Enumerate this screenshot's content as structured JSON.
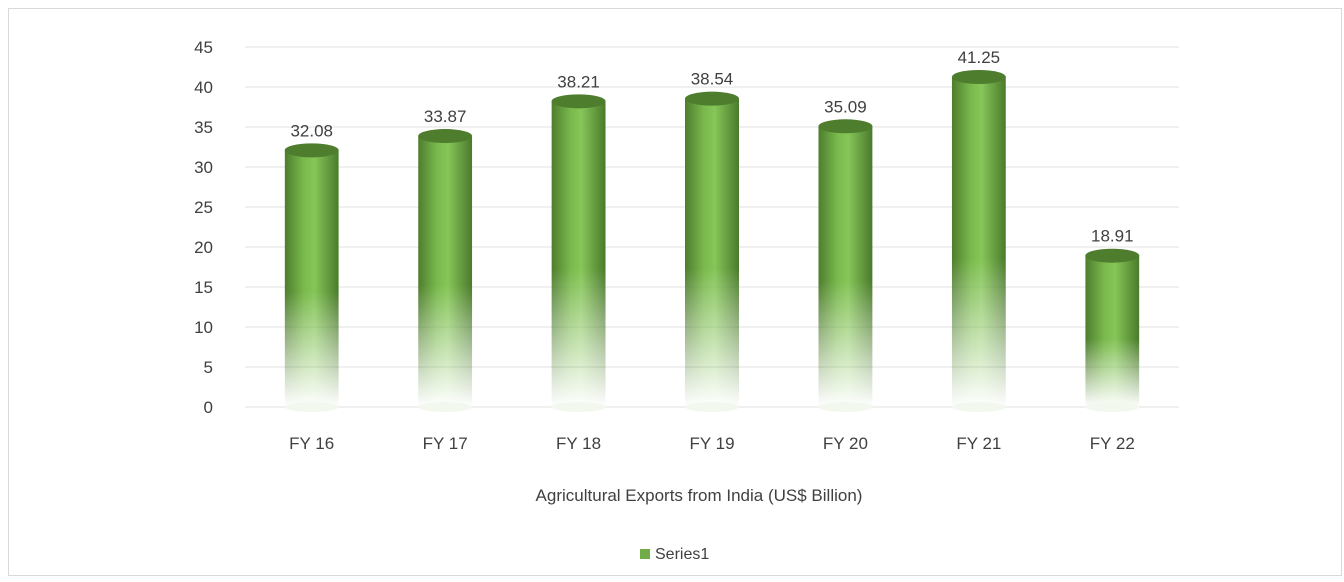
{
  "chart_data": {
    "type": "bar",
    "categories": [
      "FY 16",
      "FY 17",
      "FY 18",
      "FY 19",
      "FY 20",
      "FY 21",
      "FY 22"
    ],
    "series": [
      {
        "name": "Series1",
        "values": [
          32.08,
          33.87,
          38.21,
          38.54,
          35.09,
          41.25,
          18.91
        ],
        "labels": [
          "32.08",
          "33.87",
          "38.21",
          "38.54",
          "35.09",
          "41.25",
          "18.91"
        ]
      }
    ],
    "title": "",
    "xlabel": "Agricultural Exports from India (US$ Billion)",
    "ylabel": "",
    "ylim": [
      0,
      45
    ],
    "yticks": [
      0,
      5,
      10,
      15,
      20,
      25,
      30,
      35,
      40,
      45
    ],
    "grid": true,
    "legend": "bottom",
    "colors": {
      "bar_top": "#70ad47",
      "bar_dark": "#548235",
      "bar_light": "#8fcf5e",
      "cap": "#4e7d2e",
      "grid": "#e6e6e6",
      "text": "#404040"
    }
  }
}
